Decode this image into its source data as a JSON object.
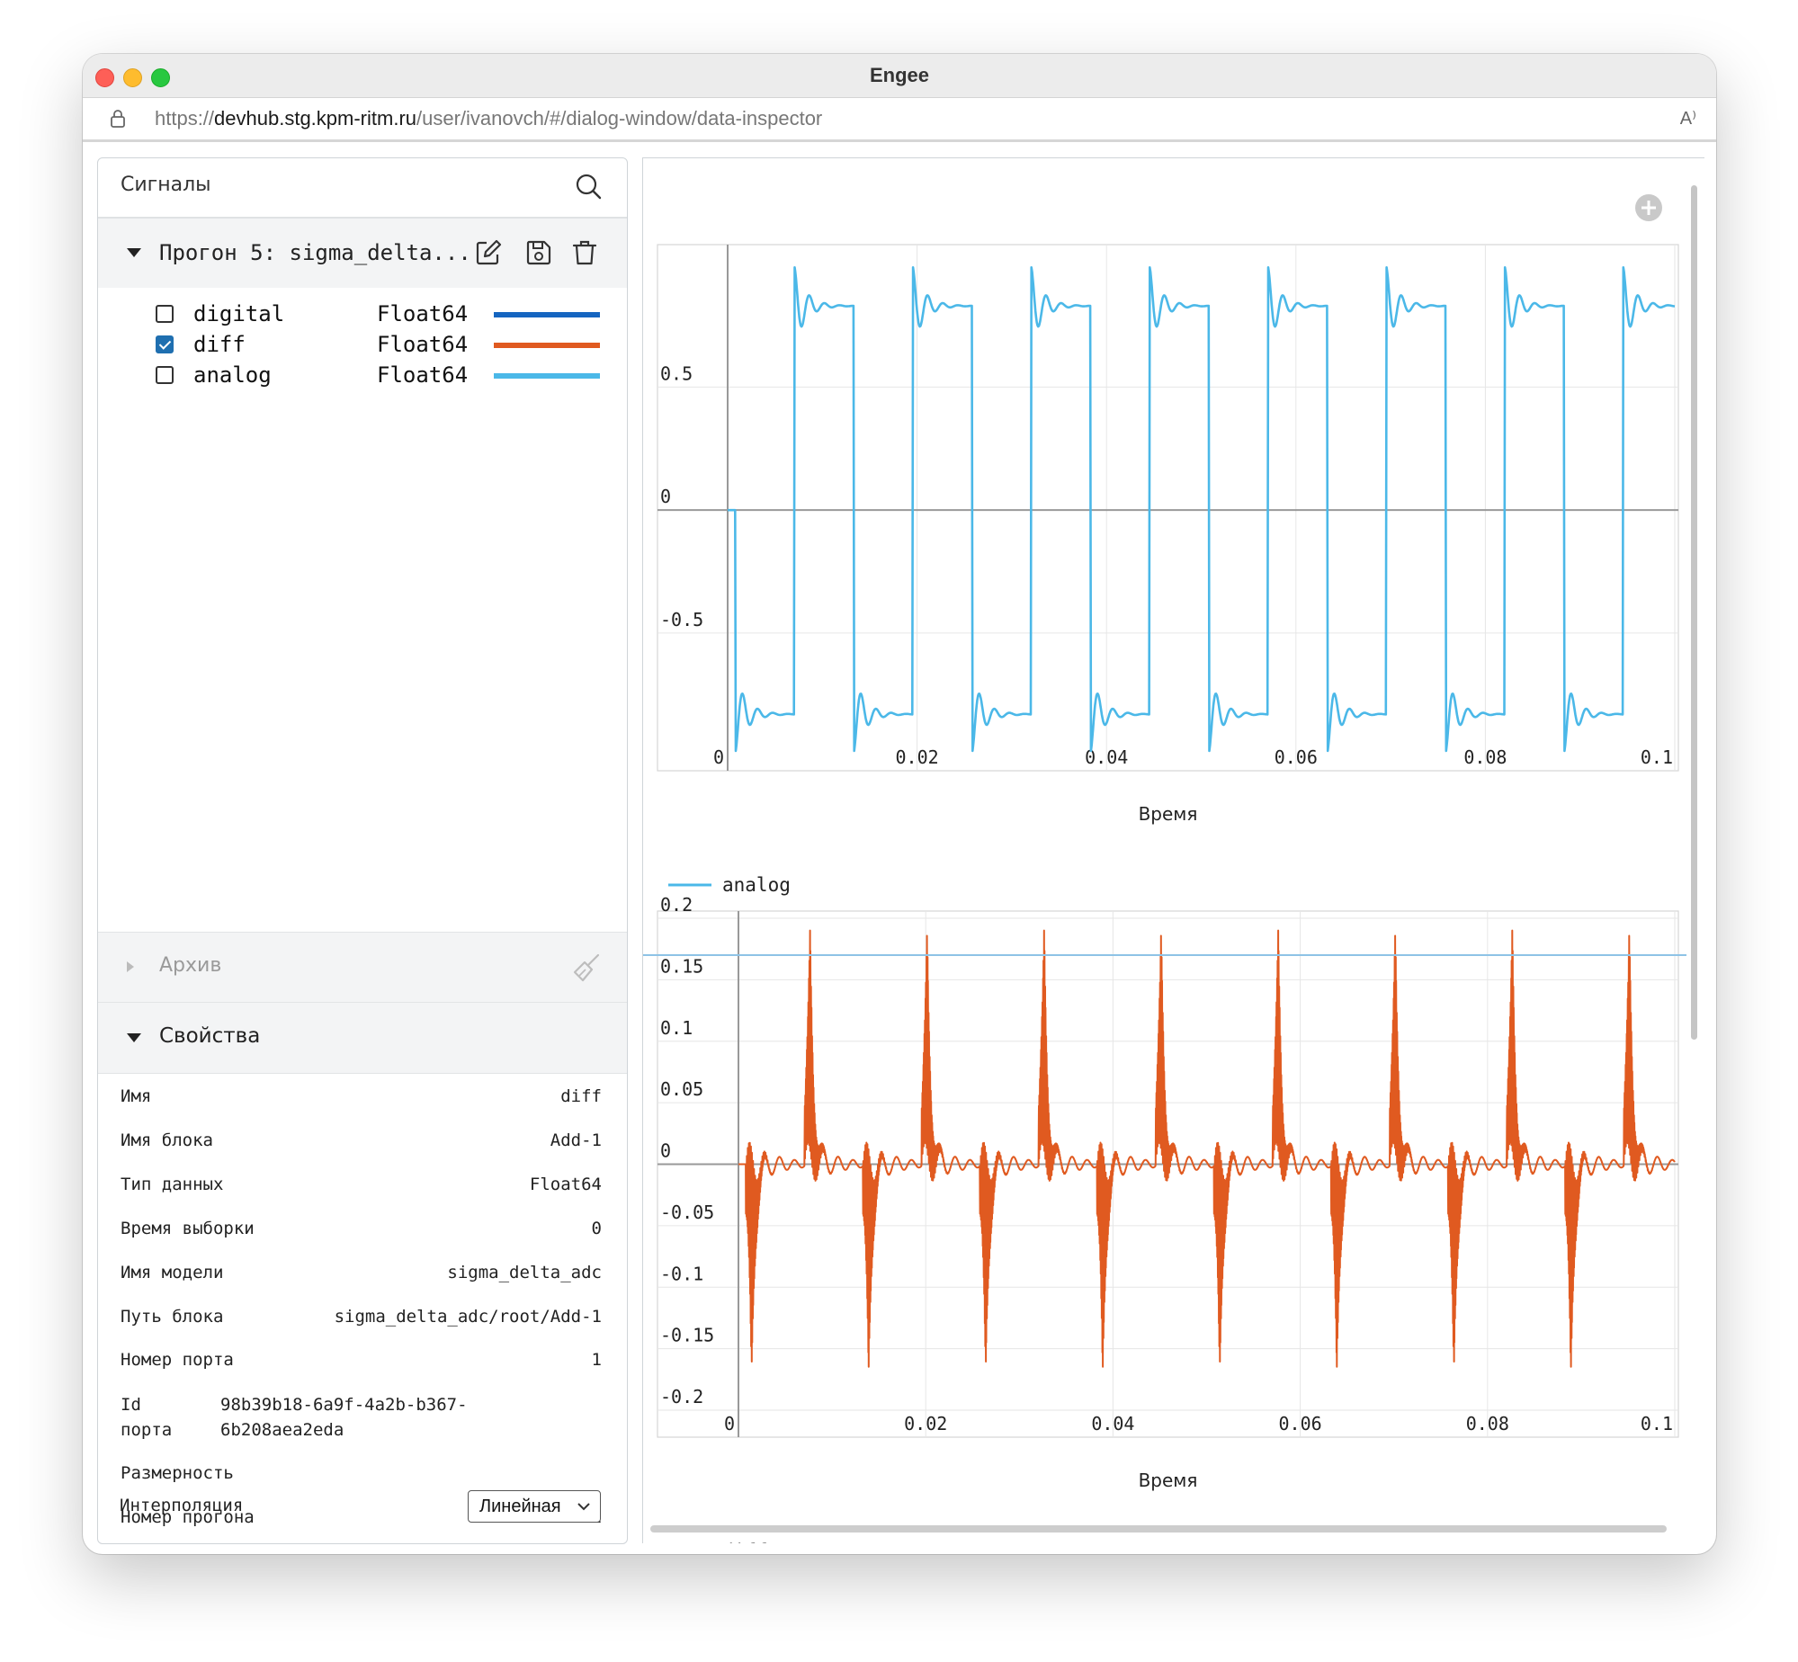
{
  "window": {
    "title": "Engee"
  },
  "browser": {
    "url_scheme": "https://",
    "url_host": "devhub.stg.kpm-ritm.ru",
    "url_path": "/user/ivanovch/#/dialog-window/data-inspector",
    "reader_label": "A⁾"
  },
  "signals_panel": {
    "title": "Сигналы",
    "run": {
      "title": "Прогон 5: sigma_delta..."
    },
    "signals": [
      {
        "name": "digital",
        "type": "Float64",
        "color": "#1565c0",
        "checked": false
      },
      {
        "name": "diff",
        "type": "Float64",
        "color": "#e05a20",
        "checked": true
      },
      {
        "name": "analog",
        "type": "Float64",
        "color": "#4bb8e8",
        "checked": false
      }
    ]
  },
  "archive": {
    "label": "Архив"
  },
  "properties": {
    "label": "Свойства",
    "rows": [
      {
        "key": "Имя",
        "value": "diff"
      },
      {
        "key": "Имя блока",
        "value": "Add-1"
      },
      {
        "key": "Тип данных",
        "value": "Float64"
      },
      {
        "key": "Время выборки",
        "value": "0"
      },
      {
        "key": "Имя модели",
        "value": "sigma_delta_adc"
      },
      {
        "key": "Путь блока",
        "value": "sigma_delta_adc/root/Add-1"
      },
      {
        "key": "Номер порта",
        "value": "1"
      }
    ],
    "port_id": {
      "key_line1": "Id",
      "key_line2": "порта",
      "value_line1": "98b39b18-6a9f-4a2b-b367-",
      "value_line2": "6b208aea2eda"
    },
    "dimension": {
      "key": "Размерность",
      "value": ""
    },
    "run_number": {
      "key": "Номер прогона",
      "value": "1"
    },
    "interpolation": {
      "key": "Интерполяция",
      "value": "Линейная"
    }
  },
  "chart_data": [
    {
      "type": "line",
      "xlabel": "Время",
      "ylabel": "",
      "xlim": [
        0,
        0.1
      ],
      "ylim": [
        -0.95,
        1.05
      ],
      "x_ticks": [
        "0",
        "0.02",
        "0.04",
        "0.06",
        "0.08",
        "0.1"
      ],
      "y_ticks": [
        "0.5",
        "0",
        "-0.5"
      ],
      "grid": true,
      "legend_position": "bottom-left",
      "series": [
        {
          "name": "analog",
          "color": "#4bb8e8",
          "shape": "square wave, amplitude ~0.9, period ~0.0125, ringing after each edge"
        }
      ]
    },
    {
      "type": "line",
      "xlabel": "Время",
      "ylabel": "",
      "xlim": [
        0,
        0.1
      ],
      "ylim": [
        -0.2,
        0.2
      ],
      "x_ticks": [
        "0",
        "0.02",
        "0.04",
        "0.06",
        "0.08",
        "0.1"
      ],
      "y_ticks": [
        "0.2",
        "0.15",
        "0.1",
        "0.05",
        "0",
        "-0.05",
        "-0.1",
        "-0.15",
        "-0.2"
      ],
      "grid": true,
      "legend_position": "bottom-left",
      "series": [
        {
          "name": "diff",
          "color": "#e05a20",
          "shape": "dense oscillation with spikes to ~0.195 at rising edges and ~-0.195 at falling edges"
        }
      ]
    }
  ]
}
